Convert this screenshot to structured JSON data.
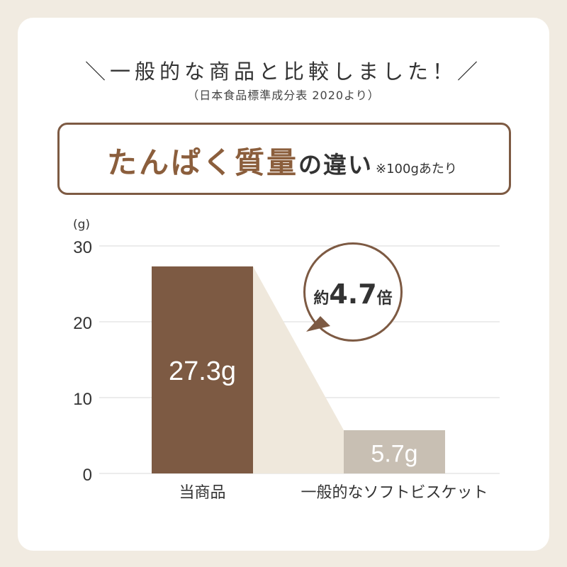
{
  "header": {
    "headline": "＼一般的な商品と比較しました！／",
    "source": "（日本食品標準成分表 2020より）"
  },
  "title_box": {
    "main": "たんぱく質量",
    "suffix": "の違い",
    "note": "※100gあたり"
  },
  "bubble": {
    "prefix": "約",
    "value": "4.7",
    "suffix": "倍"
  },
  "colors": {
    "bar_primary": "#7d5a43",
    "bar_secondary": "#c8bfb3",
    "connector": "#efe8dc",
    "accent_text": "#8b5e3c"
  },
  "chart_data": {
    "type": "bar",
    "unit_label": "(g)",
    "categories": [
      "当商品",
      "一般的なソフトビスケット"
    ],
    "values": [
      27.3,
      5.7
    ],
    "value_labels": [
      "27.3g",
      "5.7g"
    ],
    "ylim": [
      0,
      30
    ],
    "yticks": [
      0,
      10,
      20,
      30
    ],
    "grid": true
  }
}
